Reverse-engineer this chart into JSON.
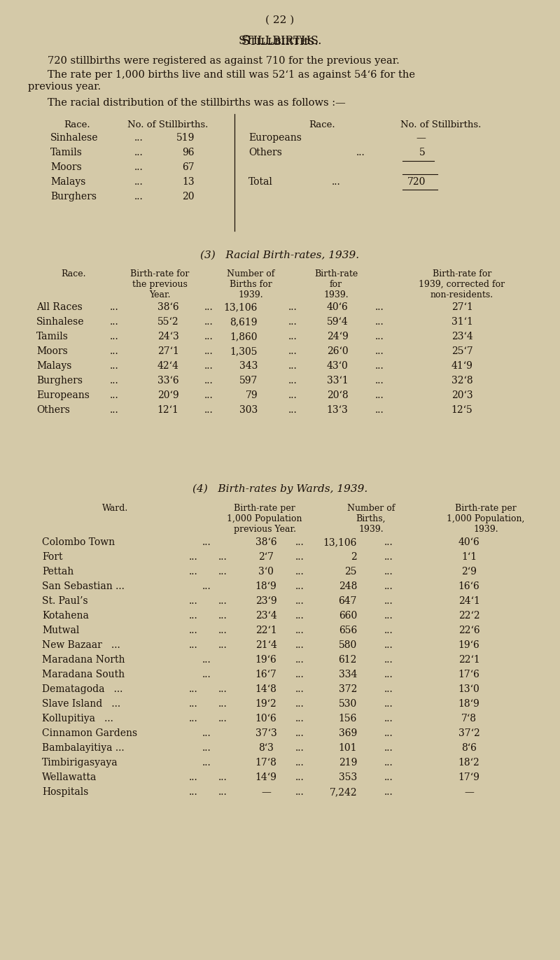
{
  "bg_color": "#d4c9a8",
  "text_color": "#1a1008",
  "page_num": "( 22 )",
  "title": "Stillbirths.",
  "para1": "720 stillbirths were registered as against 710 for the previous year.",
  "para2a": "The rate per 1,000 births live and still was 52‘1 as against 54‘6 for the",
  "para2b": "previous year.",
  "para3": "The racial distribution of the stillbirths was as follows :—",
  "sb_left_races": [
    "Sinhalese",
    "Tamils",
    "Moors",
    "Malays",
    "Burghers"
  ],
  "sb_left_vals": [
    "519",
    "96",
    "67",
    "13",
    "20"
  ],
  "sb_right_races": [
    "Europeans",
    "Others",
    "",
    "Total"
  ],
  "sb_right_vals": [
    "—",
    "5",
    "",
    "720"
  ],
  "s3_title": "(3)   Racial Birth-rates, 1939.",
  "s3_races": [
    "All Races",
    "Sinhalese",
    "Tamils",
    "Moors",
    "Malays",
    "Burghers",
    "Europeans",
    "Others"
  ],
  "s3_prev": [
    "38‘6",
    "55‘2",
    "24‘3",
    "27‘1",
    "42‘4",
    "33‘6",
    "20‘9",
    "12‘1"
  ],
  "s3_births": [
    "13,106",
    "8,619",
    "1,860",
    "1,305",
    "343",
    "597",
    "79",
    "303"
  ],
  "s3_rate39": [
    "40‘6",
    "59‘4",
    "24‘9",
    "26‘0",
    "43‘0",
    "33‘1",
    "20‘8",
    "13‘3"
  ],
  "s3_corr": [
    "27‘1",
    "31‘1",
    "23‘4",
    "25‘7",
    "41‘9",
    "32‘8",
    "20‘3",
    "12‘5"
  ],
  "s4_title": "(4)   Birth-rates by Wards, 1939.",
  "s4_wards": [
    "Colombo Town",
    "Fort",
    "Pettah",
    "San Sebastian ...",
    "St. Paul’s",
    "Kotahena",
    "Mutwal",
    "New Bazaar   ...",
    "Maradana North",
    "Maradana South",
    "Dematagoda   ...",
    "Slave Island   ...",
    "Kollupitiya   ...",
    "Cinnamon Gardens",
    "Bambalayitiya ...",
    "Timbirigasyaya",
    "Wellawatta",
    "Hospitals"
  ],
  "s4_prev": [
    "38‘6",
    "2‘7",
    "3‘0",
    "18‘9",
    "23‘9",
    "23‘4",
    "22‘1",
    "21‘4",
    "19‘6",
    "16‘7",
    "14‘8",
    "19‘2",
    "10‘6",
    "37‘3",
    "8‘3",
    "17‘8",
    "14‘9",
    "—"
  ],
  "s4_births": [
    "13,106",
    "2",
    "25",
    "248",
    "647",
    "660",
    "656",
    "580",
    "612",
    "334",
    "372",
    "530",
    "156",
    "369",
    "101",
    "219",
    "353",
    "7,242"
  ],
  "s4_curr": [
    "40‘6",
    "1‘1",
    "2‘9",
    "16‘6",
    "24‘1",
    "22‘2",
    "22‘6",
    "19‘6",
    "22‘1",
    "17‘6",
    "13‘0",
    "18‘9",
    "7‘8",
    "37‘2",
    "8‘6",
    "18‘2",
    "17‘9",
    "—"
  ],
  "s4_extra_dots": [
    false,
    true,
    true,
    false,
    true,
    true,
    true,
    true,
    false,
    false,
    true,
    true,
    true,
    false,
    false,
    false,
    true,
    true
  ]
}
